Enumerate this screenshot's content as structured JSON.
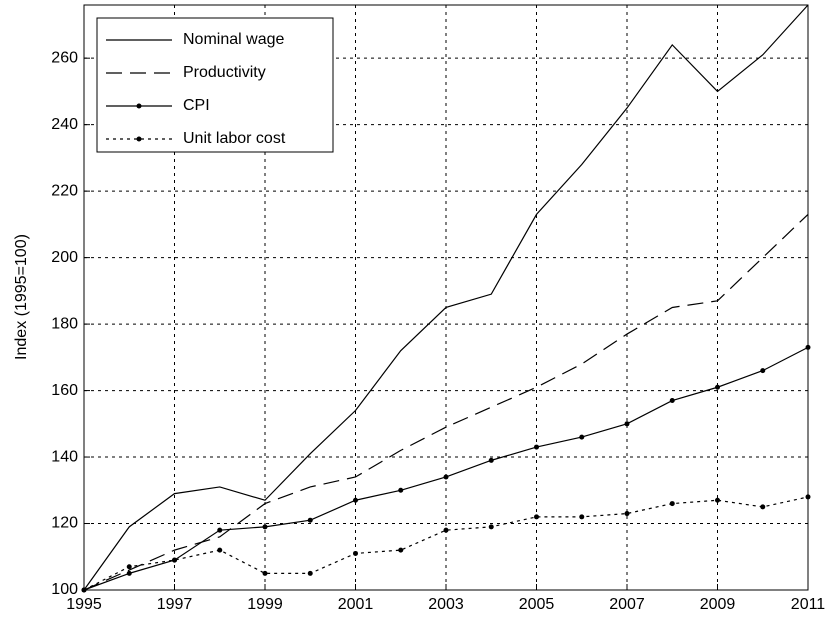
{
  "chart_data": {
    "type": "line",
    "y_label": "Index (1995=100)",
    "x": [
      1995,
      1996,
      1997,
      1998,
      1999,
      2000,
      2001,
      2002,
      2003,
      2004,
      2005,
      2006,
      2007,
      2008,
      2009,
      2010,
      2011
    ],
    "series": [
      {
        "name": "Nominal wage",
        "color": "#000000",
        "linestyle": "solid",
        "marker": "none",
        "values": [
          100,
          119,
          129,
          131,
          127,
          141,
          154,
          172,
          185,
          189,
          213,
          228,
          245,
          264,
          250,
          261,
          276
        ]
      },
      {
        "name": "Productivity",
        "color": "#000000",
        "linestyle": "dashed",
        "marker": "none",
        "values": [
          100,
          106,
          112,
          116,
          126,
          131,
          134,
          142,
          149,
          155,
          161,
          168,
          177,
          185,
          187,
          200,
          213
        ]
      },
      {
        "name": "CPI",
        "color": "#000000",
        "linestyle": "solid",
        "marker": "dot",
        "values": [
          100,
          105,
          109,
          118,
          119,
          121,
          127,
          130,
          134,
          139,
          143,
          146,
          150,
          157,
          161,
          166,
          173
        ]
      },
      {
        "name": "Unit labor cost",
        "color": "#000000",
        "linestyle": "dotted",
        "marker": "dot",
        "values": [
          100,
          107,
          109,
          112,
          105,
          105,
          111,
          112,
          118,
          119,
          122,
          122,
          123,
          126,
          127,
          125,
          128
        ]
      }
    ],
    "xlim": [
      1995,
      2011
    ],
    "xticks": [
      1995,
      1997,
      1999,
      2001,
      2003,
      2005,
      2007,
      2009,
      2011
    ],
    "ylim": [
      100,
      276
    ],
    "yticks": [
      100,
      120,
      140,
      160,
      180,
      200,
      220,
      240,
      260
    ],
    "grid": true,
    "legend": "upper left"
  }
}
